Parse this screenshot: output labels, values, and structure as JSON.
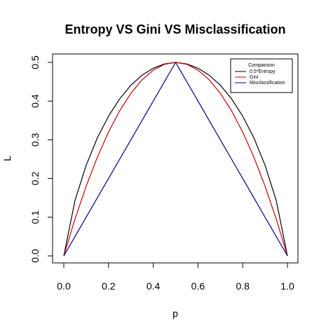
{
  "chart_data": {
    "type": "line",
    "title": "Entropy VS Gini VS Misclassification",
    "xlabel": "p",
    "ylabel": "L",
    "xlim": [
      0,
      1
    ],
    "ylim": [
      0,
      0.5
    ],
    "x_ticks": [
      "0.0",
      "0.2",
      "0.4",
      "0.6",
      "0.8",
      "1.0"
    ],
    "y_ticks": [
      "0.0",
      "0.1",
      "0.2",
      "0.3",
      "0.4",
      "0.5"
    ],
    "grid": false,
    "legend": {
      "title": "Comparison",
      "placement": "top-right"
    },
    "x": [
      0.0,
      0.05,
      0.1,
      0.15,
      0.2,
      0.25,
      0.3,
      0.35,
      0.4,
      0.45,
      0.5,
      0.55,
      0.6,
      0.65,
      0.7,
      0.75,
      0.8,
      0.85,
      0.9,
      0.95,
      1.0
    ],
    "series": [
      {
        "name": "0.5*Entropy",
        "color": "#000000",
        "values": [
          0.0,
          0.143,
          0.234,
          0.305,
          0.361,
          0.406,
          0.441,
          0.467,
          0.485,
          0.496,
          0.5,
          0.496,
          0.485,
          0.467,
          0.441,
          0.406,
          0.361,
          0.305,
          0.234,
          0.143,
          0.0
        ]
      },
      {
        "name": "Gini",
        "color": "#cc0000",
        "values": [
          0.0,
          0.095,
          0.18,
          0.255,
          0.32,
          0.375,
          0.42,
          0.455,
          0.48,
          0.495,
          0.5,
          0.495,
          0.48,
          0.455,
          0.42,
          0.375,
          0.32,
          0.255,
          0.18,
          0.095,
          0.0
        ]
      },
      {
        "name": "Misclassification",
        "color": "#00008b",
        "values": [
          0.0,
          0.05,
          0.1,
          0.15,
          0.2,
          0.25,
          0.3,
          0.35,
          0.4,
          0.45,
          0.5,
          0.45,
          0.4,
          0.35,
          0.3,
          0.25,
          0.2,
          0.15,
          0.1,
          0.05,
          0.0
        ]
      }
    ]
  }
}
